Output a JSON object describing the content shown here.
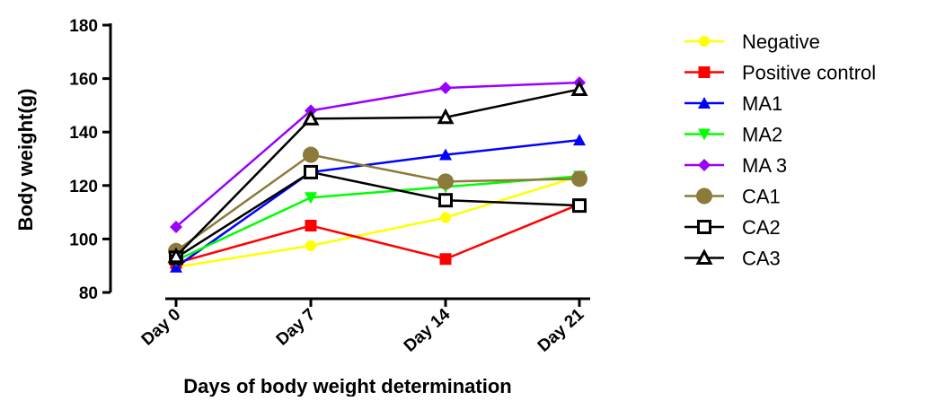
{
  "chart_data": {
    "type": "line",
    "title": "",
    "xlabel": "Days of body weight determination",
    "ylabel": "Body weight(g)",
    "categories": [
      "Day 0",
      "Day 7",
      "Day 14",
      "Day 21"
    ],
    "ylim": [
      80,
      180
    ],
    "yticks": [
      80,
      100,
      120,
      140,
      160,
      180
    ],
    "grid": false,
    "legend_position": "right",
    "series": [
      {
        "name": "Negative",
        "color": "#ffff00",
        "marker": "circle-filled",
        "values": [
          89.5,
          97.5,
          108,
          123.5
        ]
      },
      {
        "name": "Positive control",
        "color": "#ff0000",
        "marker": "square-filled",
        "values": [
          91,
          105,
          92.5,
          113
        ]
      },
      {
        "name": "MA1",
        "color": "#0000ff",
        "marker": "triangle-up-filled",
        "values": [
          89.5,
          125,
          131.5,
          137
        ]
      },
      {
        "name": "MA2",
        "color": "#00ff00",
        "marker": "triangle-down-filled",
        "values": [
          92,
          115.5,
          119.5,
          123.5
        ]
      },
      {
        "name": "MA 3",
        "color": "#9900ff",
        "marker": "diamond-filled",
        "values": [
          104.5,
          148,
          156.5,
          158.5
        ]
      },
      {
        "name": "CA1",
        "color": "#8c7a3a",
        "marker": "circle-filled-large",
        "values": [
          95.5,
          131.5,
          121.5,
          122.5
        ]
      },
      {
        "name": "CA2",
        "color": "#000000",
        "marker": "square-open",
        "values": [
          93,
          125,
          114.5,
          112.5
        ]
      },
      {
        "name": "CA3",
        "color": "#000000",
        "marker": "triangle-up-open",
        "values": [
          93.5,
          145,
          145.5,
          156
        ]
      }
    ]
  }
}
